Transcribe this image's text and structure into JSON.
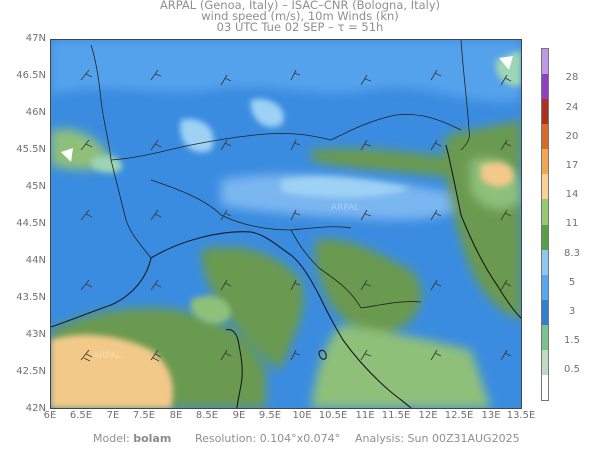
{
  "header": {
    "line1": "ARPAL (Genoa, Italy)  –  ISAC–CNR (Bologna, Italy)",
    "line2": "wind speed (m/s), 10m Winds (kn)",
    "line3": "03 UTC Tue 02 SEP  –  τ = 51h"
  },
  "axes": {
    "lat_labels": [
      "47N",
      "46.5N",
      "46N",
      "45.5N",
      "45N",
      "44.5N",
      "44N",
      "43.5N",
      "43N",
      "42.5N",
      "42N"
    ],
    "lon_labels": [
      "6E",
      "6.5E",
      "7E",
      "7.5E",
      "8E",
      "8.5E",
      "9E",
      "9.5E",
      "10E",
      "10.5E",
      "11E",
      "11.5E",
      "12E",
      "12.5E",
      "13E",
      "13.5E"
    ]
  },
  "colorbar": {
    "ticks": [
      "28",
      "24",
      "20",
      "17",
      "14",
      "11",
      "8.3",
      "5",
      "3",
      "1.5",
      "0.5"
    ],
    "colors": [
      "#ffffff",
      "#bcdcc4",
      "#7ec18e",
      "#2e80d0",
      "#54a8f0",
      "#8cc8f0",
      "#5a9e46",
      "#98c870",
      "#f8d098",
      "#f0a850",
      "#d86a2a",
      "#b03020",
      "#9040c0",
      "#c098e8"
    ]
  },
  "footer": {
    "model_label": "Model:",
    "model_value": "bolam",
    "resolution_label": "Resolution:",
    "resolution_value": "0.104°x0.074°",
    "analysis_label": "Analysis:",
    "analysis_value": "Sun  00Z31AUG2025"
  },
  "watermark": "ARPAL",
  "map_colors": {
    "land_dark": "#2a72c8",
    "blue": "#3a8ce0",
    "light_blue": "#6ab0ee",
    "pale_blue": "#9ed2f4",
    "green": "#6a9a50",
    "light_green": "#8fc07a",
    "orange": "#f3c98a",
    "teal": "#9dd6b6",
    "coast": "#1a1a1a",
    "border": "#222222",
    "barb": "#3a3a3a"
  }
}
